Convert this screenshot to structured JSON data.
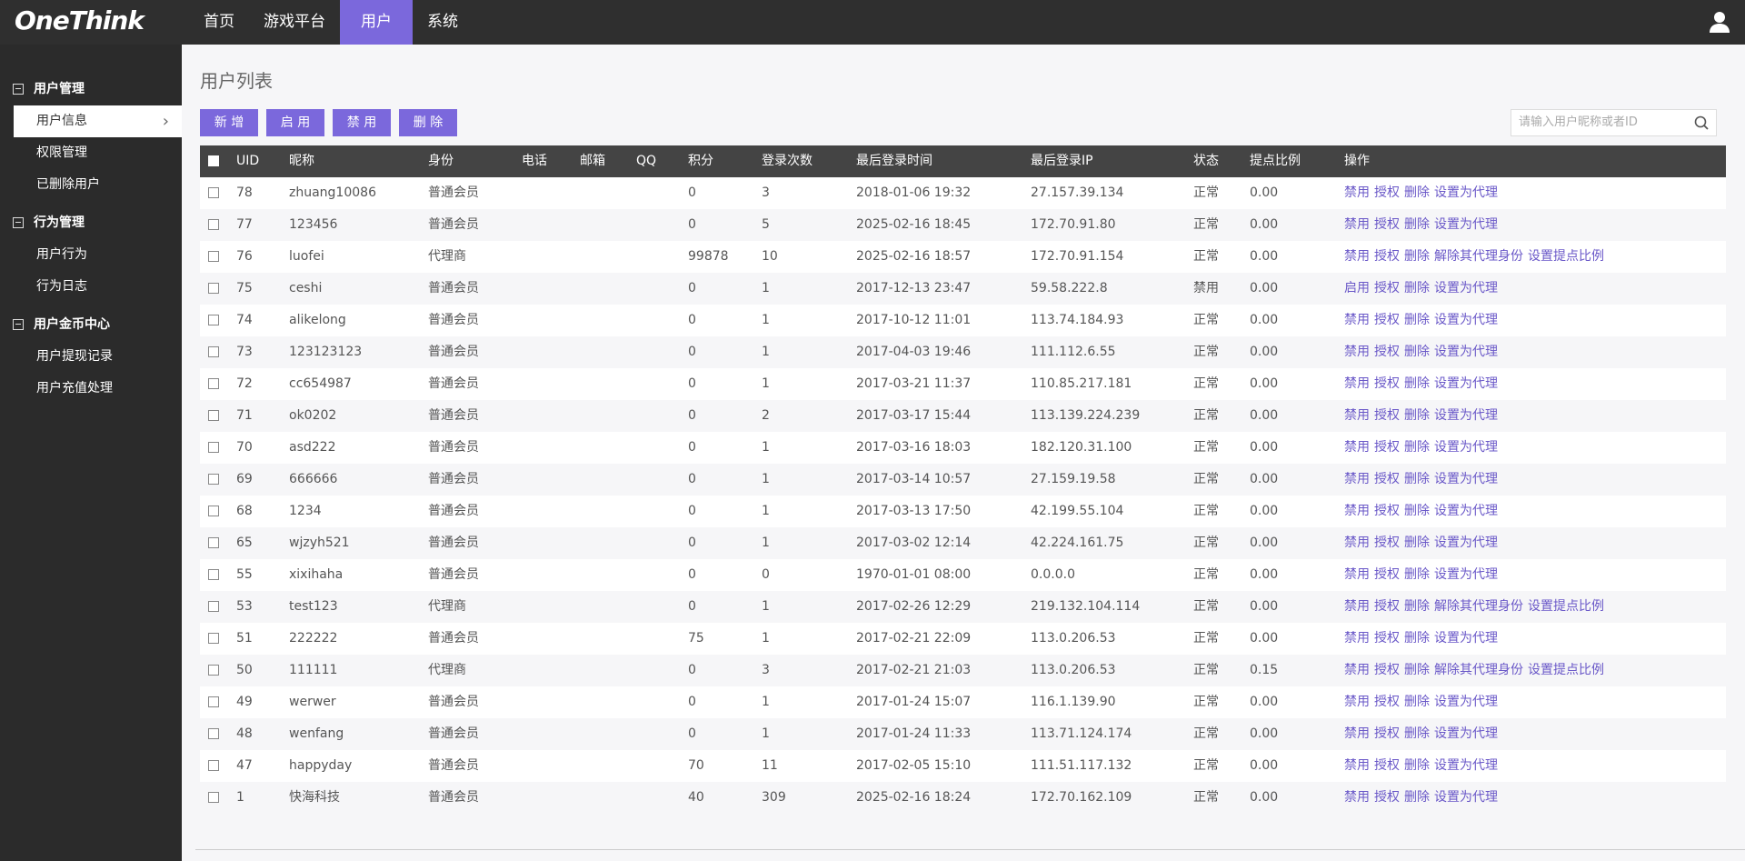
{
  "header": {
    "logo": "OneThink",
    "nav": [
      "首页",
      "游戏平台",
      "用户",
      "系统"
    ],
    "active_nav": 2
  },
  "sidebar": {
    "groups": [
      {
        "title": "用户管理",
        "items": [
          "用户信息",
          "权限管理",
          "已删除用户"
        ]
      },
      {
        "title": "行为管理",
        "items": [
          "用户行为",
          "行为日志"
        ]
      },
      {
        "title": "用户金币中心",
        "items": [
          "用户提现记录",
          "用户充值处理"
        ]
      }
    ],
    "active_item": [
      0,
      0
    ]
  },
  "page": {
    "title": "用户列表",
    "buttons": [
      "新 增",
      "启 用",
      "禁 用",
      "删 除"
    ],
    "search_placeholder": "请输入用户昵称或者ID"
  },
  "table": {
    "columns": [
      "UID",
      "昵称",
      "身份",
      "电话",
      "邮箱",
      "QQ",
      "积分",
      "登录次数",
      "最后登录时间",
      "最后登录IP",
      "状态",
      "提点比例",
      "操作"
    ],
    "rows": [
      {
        "uid": 78,
        "nickname": "zhuang10086",
        "role": "普通会员",
        "points": 0,
        "logins": 3,
        "last_time": "2018-01-06 19:32",
        "last_ip": "27.157.39.134",
        "status": "正常",
        "ratio": "0.00",
        "actions": [
          "禁用",
          "授权",
          "删除",
          "设置为代理"
        ]
      },
      {
        "uid": 77,
        "nickname": "123456",
        "role": "普通会员",
        "points": 0,
        "logins": 5,
        "last_time": "2025-02-16 18:45",
        "last_ip": "172.70.91.80",
        "status": "正常",
        "ratio": "0.00",
        "actions": [
          "禁用",
          "授权",
          "删除",
          "设置为代理"
        ]
      },
      {
        "uid": 76,
        "nickname": "luofei",
        "role": "代理商",
        "points": 99878,
        "logins": 10,
        "last_time": "2025-02-16 18:57",
        "last_ip": "172.70.91.154",
        "status": "正常",
        "ratio": "0.00",
        "actions": [
          "禁用",
          "授权",
          "删除",
          "解除其代理身份",
          "设置提点比例"
        ]
      },
      {
        "uid": 75,
        "nickname": "ceshi",
        "role": "普通会员",
        "points": 0,
        "logins": 1,
        "last_time": "2017-12-13 23:47",
        "last_ip": "59.58.222.8",
        "status": "禁用",
        "ratio": "0.00",
        "actions": [
          "启用",
          "授权",
          "删除",
          "设置为代理"
        ]
      },
      {
        "uid": 74,
        "nickname": "alikelong",
        "role": "普通会员",
        "points": 0,
        "logins": 1,
        "last_time": "2017-10-12 11:01",
        "last_ip": "113.74.184.93",
        "status": "正常",
        "ratio": "0.00",
        "actions": [
          "禁用",
          "授权",
          "删除",
          "设置为代理"
        ]
      },
      {
        "uid": 73,
        "nickname": "123123123",
        "role": "普通会员",
        "points": 0,
        "logins": 1,
        "last_time": "2017-04-03 19:46",
        "last_ip": "111.112.6.55",
        "status": "正常",
        "ratio": "0.00",
        "actions": [
          "禁用",
          "授权",
          "删除",
          "设置为代理"
        ]
      },
      {
        "uid": 72,
        "nickname": "cc654987",
        "role": "普通会员",
        "points": 0,
        "logins": 1,
        "last_time": "2017-03-21 11:37",
        "last_ip": "110.85.217.181",
        "status": "正常",
        "ratio": "0.00",
        "actions": [
          "禁用",
          "授权",
          "删除",
          "设置为代理"
        ]
      },
      {
        "uid": 71,
        "nickname": "ok0202",
        "role": "普通会员",
        "points": 0,
        "logins": 2,
        "last_time": "2017-03-17 15:44",
        "last_ip": "113.139.224.239",
        "status": "正常",
        "ratio": "0.00",
        "actions": [
          "禁用",
          "授权",
          "删除",
          "设置为代理"
        ]
      },
      {
        "uid": 70,
        "nickname": "asd222",
        "role": "普通会员",
        "points": 0,
        "logins": 1,
        "last_time": "2017-03-16 18:03",
        "last_ip": "182.120.31.100",
        "status": "正常",
        "ratio": "0.00",
        "actions": [
          "禁用",
          "授权",
          "删除",
          "设置为代理"
        ]
      },
      {
        "uid": 69,
        "nickname": "666666",
        "role": "普通会员",
        "points": 0,
        "logins": 1,
        "last_time": "2017-03-14 10:57",
        "last_ip": "27.159.19.58",
        "status": "正常",
        "ratio": "0.00",
        "actions": [
          "禁用",
          "授权",
          "删除",
          "设置为代理"
        ]
      },
      {
        "uid": 68,
        "nickname": "1234",
        "role": "普通会员",
        "points": 0,
        "logins": 1,
        "last_time": "2017-03-13 17:50",
        "last_ip": "42.199.55.104",
        "status": "正常",
        "ratio": "0.00",
        "actions": [
          "禁用",
          "授权",
          "删除",
          "设置为代理"
        ]
      },
      {
        "uid": 65,
        "nickname": "wjzyh521",
        "role": "普通会员",
        "points": 0,
        "logins": 1,
        "last_time": "2017-03-02 12:14",
        "last_ip": "42.224.161.75",
        "status": "正常",
        "ratio": "0.00",
        "actions": [
          "禁用",
          "授权",
          "删除",
          "设置为代理"
        ]
      },
      {
        "uid": 55,
        "nickname": "xixihaha",
        "role": "普通会员",
        "points": 0,
        "logins": 0,
        "last_time": "1970-01-01 08:00",
        "last_ip": "0.0.0.0",
        "status": "正常",
        "ratio": "0.00",
        "actions": [
          "禁用",
          "授权",
          "删除",
          "设置为代理"
        ]
      },
      {
        "uid": 53,
        "nickname": "test123",
        "role": "代理商",
        "points": 0,
        "logins": 1,
        "last_time": "2017-02-26 12:29",
        "last_ip": "219.132.104.114",
        "status": "正常",
        "ratio": "0.00",
        "actions": [
          "禁用",
          "授权",
          "删除",
          "解除其代理身份",
          "设置提点比例"
        ]
      },
      {
        "uid": 51,
        "nickname": "222222",
        "role": "普通会员",
        "points": 75,
        "logins": 1,
        "last_time": "2017-02-21 22:09",
        "last_ip": "113.0.206.53",
        "status": "正常",
        "ratio": "0.00",
        "actions": [
          "禁用",
          "授权",
          "删除",
          "设置为代理"
        ]
      },
      {
        "uid": 50,
        "nickname": "111111",
        "role": "代理商",
        "points": 0,
        "logins": 3,
        "last_time": "2017-02-21 21:03",
        "last_ip": "113.0.206.53",
        "status": "正常",
        "ratio": "0.15",
        "actions": [
          "禁用",
          "授权",
          "删除",
          "解除其代理身份",
          "设置提点比例"
        ]
      },
      {
        "uid": 49,
        "nickname": "werwer",
        "role": "普通会员",
        "points": 0,
        "logins": 1,
        "last_time": "2017-01-24 15:07",
        "last_ip": "116.1.139.90",
        "status": "正常",
        "ratio": "0.00",
        "actions": [
          "禁用",
          "授权",
          "删除",
          "设置为代理"
        ]
      },
      {
        "uid": 48,
        "nickname": "wenfang",
        "role": "普通会员",
        "points": 0,
        "logins": 1,
        "last_time": "2017-01-24 11:33",
        "last_ip": "113.71.124.174",
        "status": "正常",
        "ratio": "0.00",
        "actions": [
          "禁用",
          "授权",
          "删除",
          "设置为代理"
        ]
      },
      {
        "uid": 47,
        "nickname": "happyday",
        "role": "普通会员",
        "points": 70,
        "logins": 11,
        "last_time": "2017-02-05 15:10",
        "last_ip": "111.51.117.132",
        "status": "正常",
        "ratio": "0.00",
        "actions": [
          "禁用",
          "授权",
          "删除",
          "设置为代理"
        ]
      },
      {
        "uid": 1,
        "nickname": "快海科技",
        "role": "普通会员",
        "points": 40,
        "logins": 309,
        "last_time": "2025-02-16 18:24",
        "last_ip": "172.70.162.109",
        "status": "正常",
        "ratio": "0.00",
        "actions": [
          "禁用",
          "授权",
          "删除",
          "设置为代理"
        ]
      }
    ]
  }
}
